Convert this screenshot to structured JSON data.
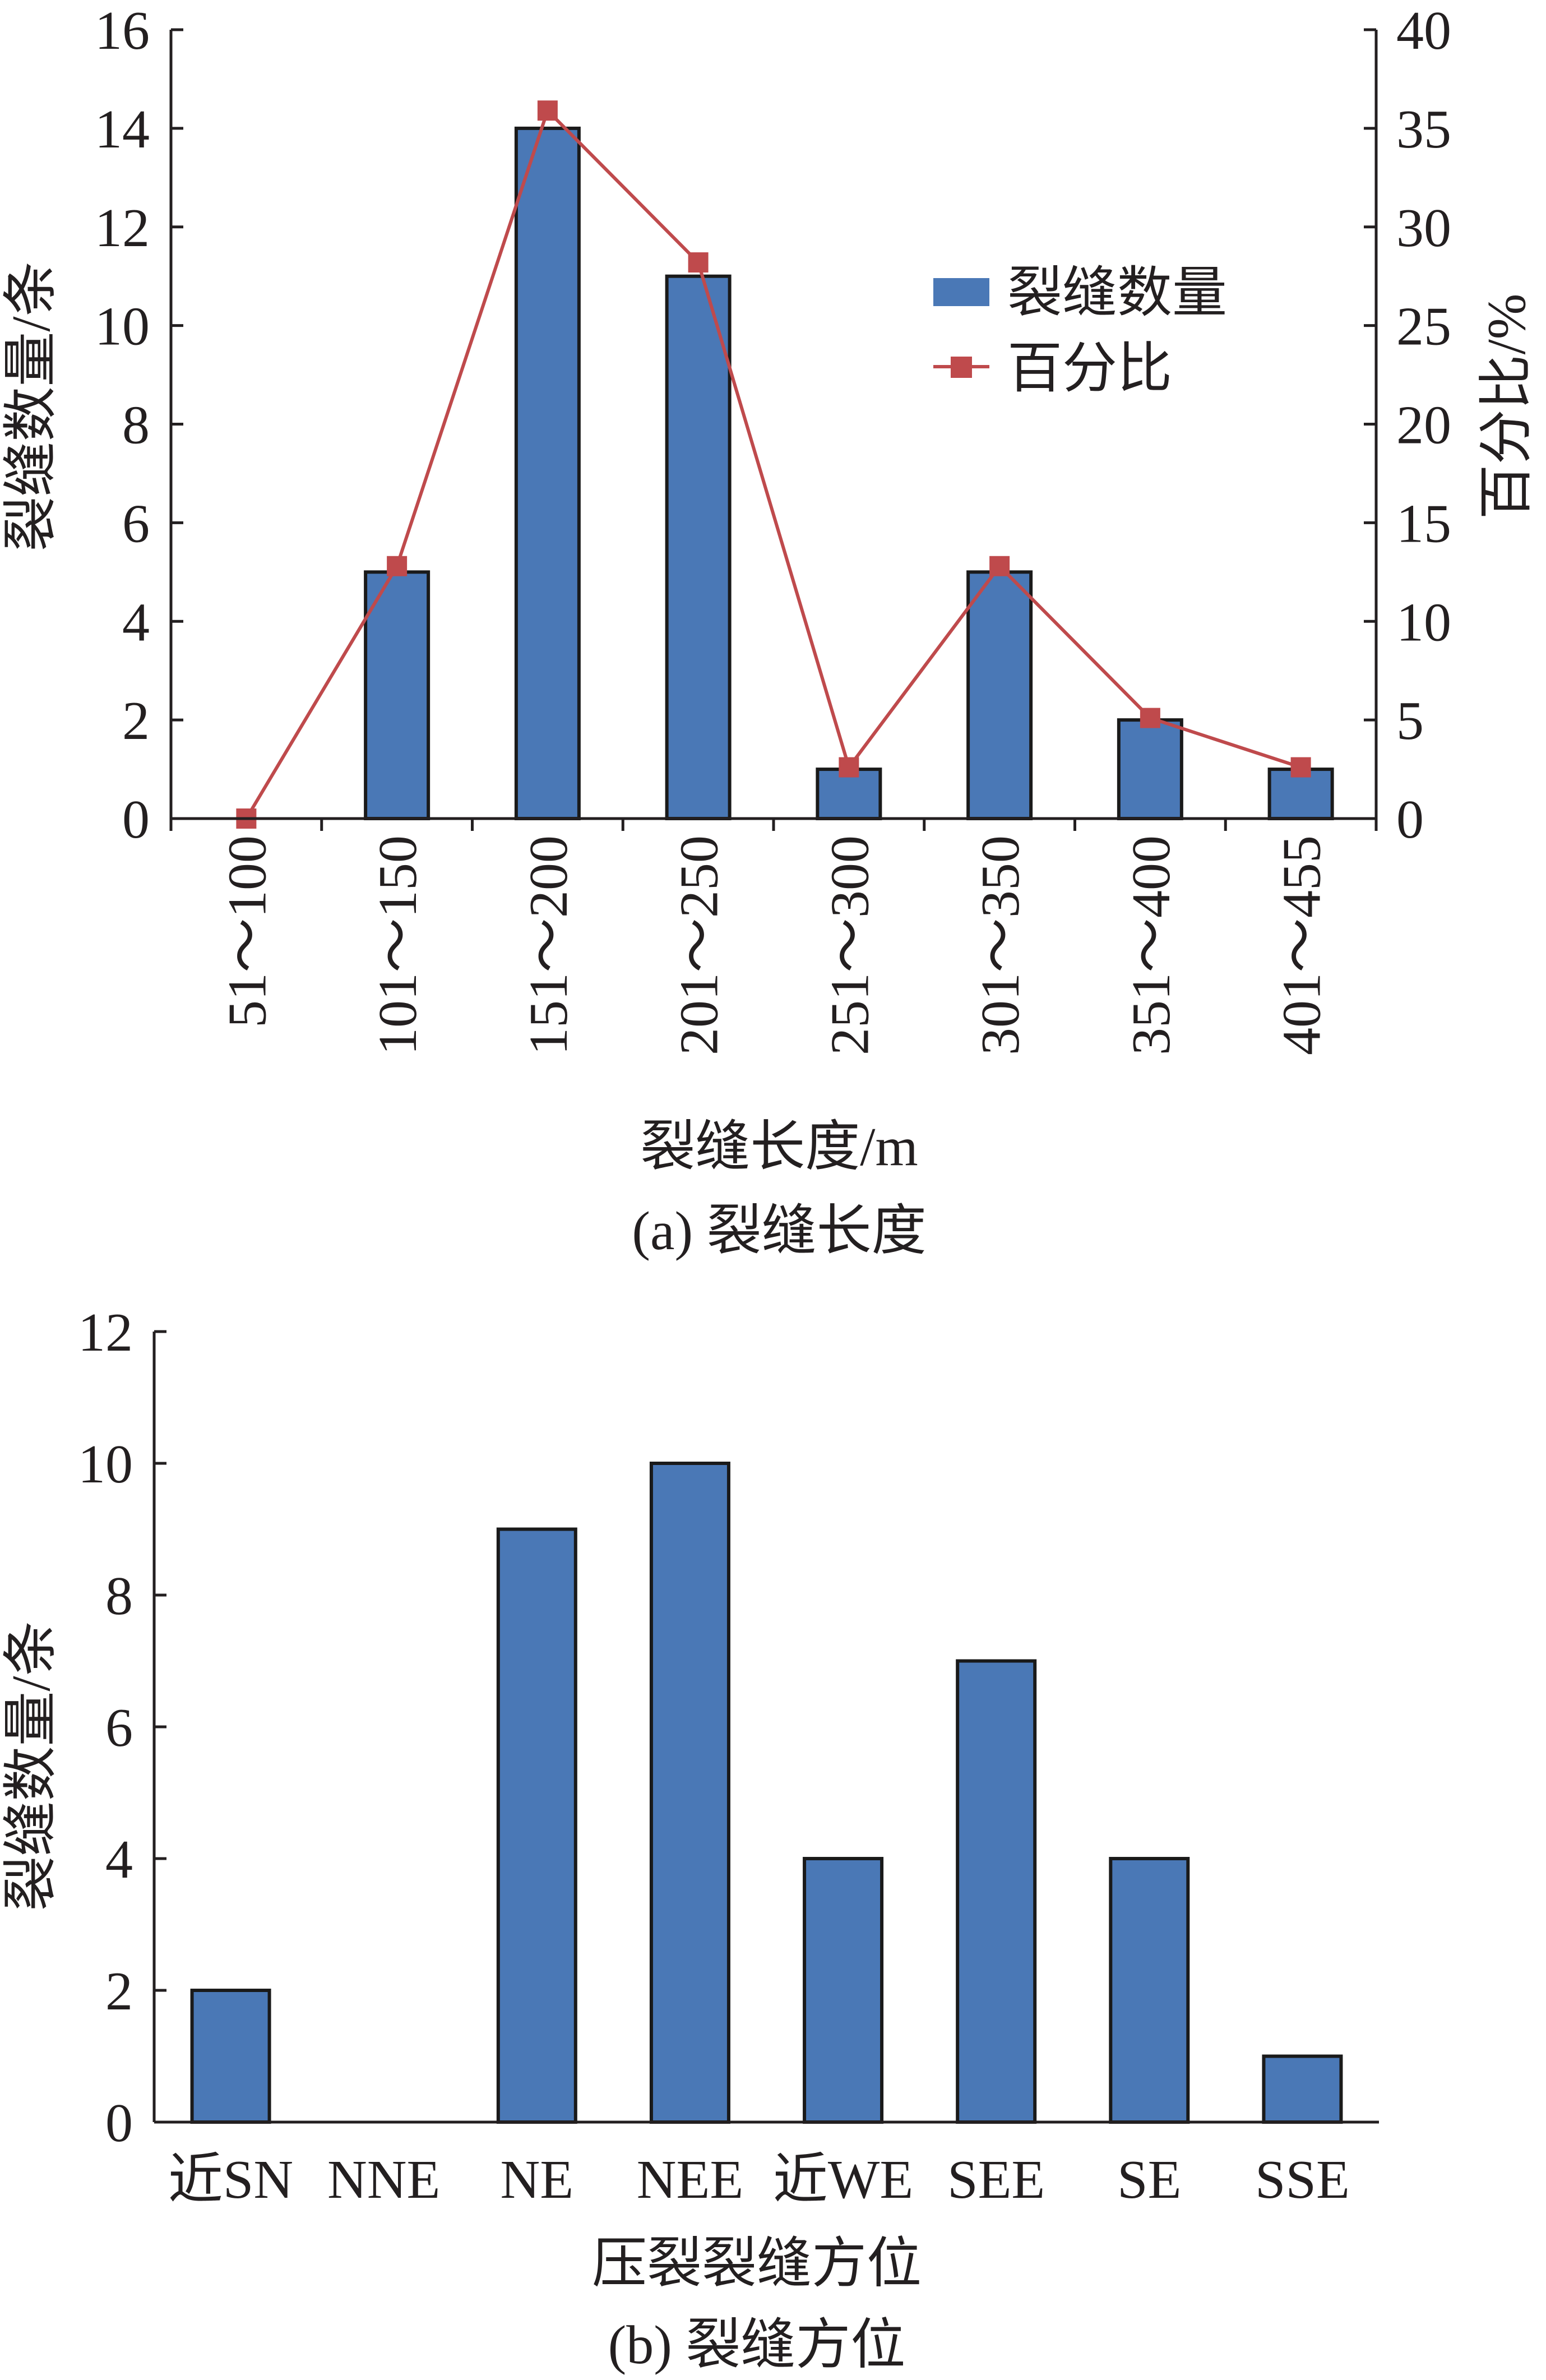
{
  "colors": {
    "bar": "#4a78b6",
    "bar_stroke": "#1a1a1a",
    "line": "#bf4a4c",
    "axis": "#231f20"
  },
  "chart_data": [
    {
      "type": "bar",
      "panel_caption": "(a) 裂缝长度",
      "xlabel": "裂缝长度/m",
      "ylabel": "裂缝数量/条",
      "y2label": "百分比/%",
      "categories": [
        "51～100",
        "101～150",
        "151～200",
        "201～250",
        "251～300",
        "301～350",
        "351～400",
        "401～455"
      ],
      "ylim": [
        0,
        16
      ],
      "yticks": [
        0,
        2,
        4,
        6,
        8,
        10,
        12,
        14,
        16
      ],
      "y2lim": [
        0,
        40
      ],
      "y2ticks": [
        0,
        5,
        10,
        15,
        20,
        25,
        30,
        35,
        40
      ],
      "series": [
        {
          "name": "裂缝数量",
          "type": "bar",
          "axis": "left",
          "values": [
            0,
            5,
            14,
            11,
            1,
            5,
            2,
            1
          ]
        },
        {
          "name": "百分比",
          "type": "line",
          "axis": "right",
          "marker": "square",
          "values": [
            0,
            12.8,
            35.9,
            28.2,
            2.6,
            12.8,
            5.1,
            2.6
          ]
        }
      ],
      "legend": {
        "position": "top-right",
        "entries": [
          "裂缝数量",
          "百分比"
        ]
      },
      "grid": false
    },
    {
      "type": "bar",
      "panel_caption": "(b) 裂缝方位",
      "xlabel": "压裂裂缝方位",
      "ylabel": "裂缝数量/条",
      "categories": [
        "近SN",
        "NNE",
        "NE",
        "NEE",
        "近WE",
        "SEE",
        "SE",
        "SSE"
      ],
      "ylim": [
        0,
        12
      ],
      "yticks": [
        0,
        2,
        4,
        6,
        8,
        10,
        12
      ],
      "series": [
        {
          "name": "",
          "type": "bar",
          "values": [
            2,
            0,
            9,
            10,
            4,
            7,
            4,
            1
          ]
        }
      ],
      "grid": false
    }
  ]
}
